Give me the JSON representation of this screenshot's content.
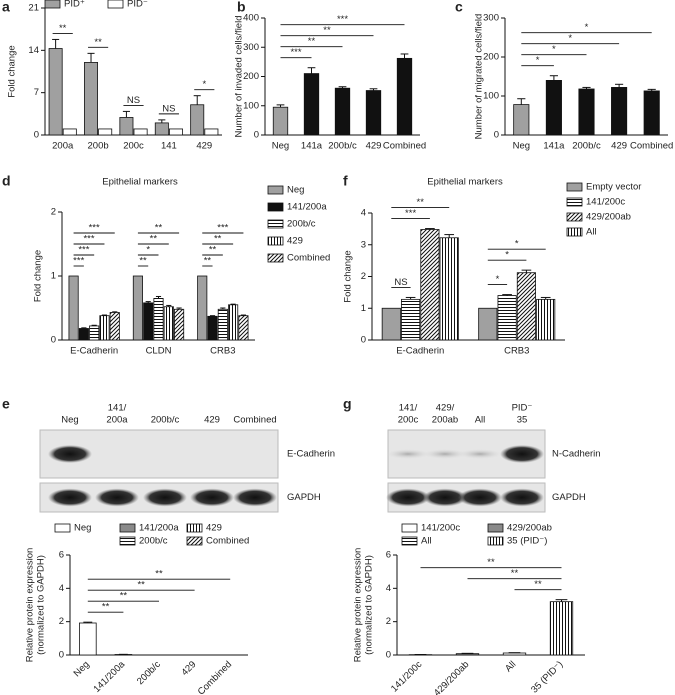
{
  "chart_data": [
    {
      "panel": "a",
      "type": "bar",
      "ylabel": [
        "Fold change"
      ],
      "categories": [
        "200a",
        "200b",
        "200c",
        "141",
        "429"
      ],
      "series": [
        {
          "name": "PID⁺",
          "color": "#a0a0a0",
          "values": [
            14.3,
            12,
            2.9,
            2.0,
            5.0
          ],
          "errors": [
            1.5,
            1.5,
            1.0,
            0.5,
            1.5
          ]
        },
        {
          "name": "PID⁻",
          "color": "#ffffff",
          "values": [
            1,
            1,
            1,
            1,
            1
          ],
          "errors": [
            0,
            0,
            0,
            0,
            0
          ]
        }
      ],
      "significance": [
        "**",
        "**",
        "NS",
        "NS",
        "*"
      ],
      "ylim": [
        0,
        21
      ],
      "yticks": [
        0,
        7,
        14,
        21
      ]
    },
    {
      "panel": "b",
      "type": "bar",
      "ylabel": [
        "Number of invaded cells/field"
      ],
      "categories": [
        "Neg",
        "141a",
        "200b/c",
        "429",
        "Combined"
      ],
      "values": [
        95,
        210,
        160,
        152,
        262
      ],
      "errors": [
        8,
        20,
        5,
        6,
        15
      ],
      "colors": [
        "#a0a0a0",
        "#111111",
        "#111111",
        "#111111",
        "#111111"
      ],
      "brackets": [
        {
          "from": 0,
          "to": 1,
          "label": "***"
        },
        {
          "from": 0,
          "to": 2,
          "label": "**"
        },
        {
          "from": 0,
          "to": 3,
          "label": "**"
        },
        {
          "from": 0,
          "to": 4,
          "label": "***"
        }
      ],
      "ylim": [
        0,
        400
      ],
      "yticks": [
        0,
        100,
        200,
        300,
        400
      ]
    },
    {
      "panel": "c",
      "type": "bar",
      "ylabel": [
        "Number of migrated cells/field"
      ],
      "categories": [
        "Neg",
        "141a",
        "200b/c",
        "429",
        "Combined"
      ],
      "values": [
        78,
        140,
        118,
        122,
        113
      ],
      "errors": [
        15,
        12,
        4,
        8,
        4
      ],
      "colors": [
        "#a0a0a0",
        "#111111",
        "#111111",
        "#111111",
        "#111111"
      ],
      "brackets": [
        {
          "from": 0,
          "to": 1,
          "label": "*"
        },
        {
          "from": 0,
          "to": 2,
          "label": "*"
        },
        {
          "from": 0,
          "to": 3,
          "label": "*"
        },
        {
          "from": 0,
          "to": 4,
          "label": "*"
        }
      ],
      "ylim": [
        0,
        300
      ],
      "yticks": [
        0,
        100,
        200,
        300
      ]
    },
    {
      "panel": "d",
      "type": "bar",
      "title": "Epithelial markers",
      "ylabel": [
        "Fold change"
      ],
      "categories": [
        "E-Cadherin",
        "CLDN",
        "CRB3"
      ],
      "series": [
        {
          "name": "Neg",
          "color": "#a0a0a0",
          "values": [
            1,
            1,
            1
          ],
          "errors": [
            0,
            0,
            0
          ]
        },
        {
          "name": "141/200a",
          "color": "#111111",
          "values": [
            0.18,
            0.58,
            0.37
          ],
          "errors": [
            0.01,
            0.02,
            0.01
          ]
        },
        {
          "name": "200b/c",
          "hatch": "horizontal",
          "values": [
            0.22,
            0.65,
            0.48
          ],
          "errors": [
            0.01,
            0.03,
            0.02
          ]
        },
        {
          "name": "429",
          "hatch": "vertical",
          "values": [
            0.38,
            0.52,
            0.55
          ],
          "errors": [
            0.01,
            0.02,
            0.01
          ]
        },
        {
          "name": "Combined",
          "hatch": "diagonal",
          "values": [
            0.43,
            0.48,
            0.38
          ],
          "errors": [
            0.01,
            0.02,
            0.01
          ]
        }
      ],
      "brackets": [
        {
          "group": 0,
          "from": 0,
          "to": 1,
          "label": "***"
        },
        {
          "group": 0,
          "from": 0,
          "to": 2,
          "label": "***"
        },
        {
          "group": 0,
          "from": 0,
          "to": 3,
          "label": "***"
        },
        {
          "group": 0,
          "from": 0,
          "to": 4,
          "label": "***"
        },
        {
          "group": 1,
          "from": 0,
          "to": 1,
          "label": "**"
        },
        {
          "group": 1,
          "from": 0,
          "to": 2,
          "label": "*"
        },
        {
          "group": 1,
          "from": 0,
          "to": 3,
          "label": "**"
        },
        {
          "group": 1,
          "from": 0,
          "to": 4,
          "label": "**"
        },
        {
          "group": 2,
          "from": 0,
          "to": 1,
          "label": "**"
        },
        {
          "group": 2,
          "from": 0,
          "to": 2,
          "label": "**"
        },
        {
          "group": 2,
          "from": 0,
          "to": 3,
          "label": "**"
        },
        {
          "group": 2,
          "from": 0,
          "to": 4,
          "label": "***"
        }
      ],
      "ylim": [
        0,
        2
      ],
      "yticks": [
        0,
        1,
        2
      ]
    },
    {
      "panel": "f",
      "type": "bar",
      "title": "Epithelial markers",
      "ylabel": [
        "Fold change"
      ],
      "categories": [
        "E-Cadherin",
        "CRB3"
      ],
      "series": [
        {
          "name": "Empty vector",
          "color": "#a0a0a0",
          "values": [
            1,
            1
          ],
          "errors": [
            0,
            0
          ]
        },
        {
          "name": "141/200c",
          "hatch": "horizontal",
          "values": [
            1.28,
            1.4
          ],
          "errors": [
            0.06,
            0.03
          ]
        },
        {
          "name": "429/200ab",
          "hatch": "diagonal",
          "values": [
            3.48,
            2.12
          ],
          "errors": [
            0.03,
            0.08
          ]
        },
        {
          "name": "All",
          "hatch": "vertical",
          "values": [
            3.22,
            1.28
          ],
          "errors": [
            0.1,
            0.06
          ]
        }
      ],
      "brackets": [
        {
          "group": 0,
          "from": 0,
          "to": 1,
          "label": "NS"
        },
        {
          "group": 0,
          "from": 0,
          "to": 2,
          "label": "***"
        },
        {
          "group": 0,
          "from": 0,
          "to": 3,
          "label": "**"
        },
        {
          "group": 1,
          "from": 0,
          "to": 1,
          "label": "*"
        },
        {
          "group": 1,
          "from": 0,
          "to": 2,
          "label": "*"
        },
        {
          "group": 1,
          "from": 0,
          "to": 3,
          "label": "*"
        }
      ],
      "ylim": [
        0,
        4
      ],
      "yticks": [
        0,
        1,
        2,
        3,
        4
      ]
    },
    {
      "type": "bar",
      "ylabel": [
        "Relative protein expression",
        "(normalized to GAPDH)"
      ],
      "legend": [
        {
          "name": "Neg",
          "color": "#ffffff"
        },
        {
          "name": "141/200a",
          "color": "#8a8a8a"
        },
        {
          "name": "429",
          "hatch": "vertical"
        },
        {
          "name": "200b/c",
          "hatch": "horizontal"
        },
        {
          "name": "Combined",
          "hatch": "diagonal"
        }
      ],
      "categories": [
        "Neg",
        "141/200a",
        "200b/c",
        "429",
        "Combined"
      ],
      "values": [
        1.92,
        0.03,
        0,
        0,
        0
      ],
      "errors": [
        0.05,
        0.01,
        0,
        0,
        0
      ],
      "brackets": [
        {
          "from": 0,
          "to": 1,
          "label": "**"
        },
        {
          "from": 0,
          "to": 2,
          "label": "**"
        },
        {
          "from": 0,
          "to": 3,
          "label": "**"
        },
        {
          "from": 0,
          "to": 4,
          "label": "**"
        }
      ],
      "ylim": [
        0,
        6
      ],
      "yticks": [
        0,
        2,
        4,
        6
      ]
    },
    {
      "type": "bar",
      "ylabel": [
        "Relative protein expression",
        "(normalized to GAPDH)"
      ],
      "legend": [
        {
          "name": "141/200c",
          "color": "#ffffff"
        },
        {
          "name": "429/200ab",
          "color": "#8a8a8a"
        },
        {
          "name": "All",
          "hatch": "horizontal"
        },
        {
          "name": "35 (PID⁻)",
          "hatch": "vertical"
        }
      ],
      "categories": [
        "141/200c",
        "429/200ab",
        "All",
        "35 (PID⁻)"
      ],
      "values": [
        0.02,
        0.08,
        0.12,
        3.2
      ],
      "errors": [
        0.01,
        0.02,
        0.02,
        0.12
      ],
      "brackets": [
        {
          "from": 2,
          "to": 3,
          "label": "**"
        },
        {
          "from": 1,
          "to": 3,
          "label": "**"
        },
        {
          "from": 0,
          "to": 3,
          "label": "**"
        }
      ],
      "ylim": [
        0,
        6
      ],
      "yticks": [
        0,
        2,
        4,
        6
      ]
    }
  ],
  "blots": [
    {
      "panel": "e",
      "lanes": [
        [
          "Neg"
        ],
        [
          "141/",
          "200a"
        ],
        [
          "200b/c"
        ],
        [
          "429"
        ],
        [
          "Combined"
        ]
      ],
      "bands": [
        "E-Cadherin",
        "GAPDH"
      ]
    },
    {
      "panel": "g",
      "lanes": [
        [
          "141/",
          "200c"
        ],
        [
          "429/",
          "200ab"
        ],
        [
          "All"
        ],
        [
          "PID⁻",
          "35"
        ]
      ],
      "bands": [
        "N-Cadherin",
        "GAPDH"
      ]
    }
  ]
}
